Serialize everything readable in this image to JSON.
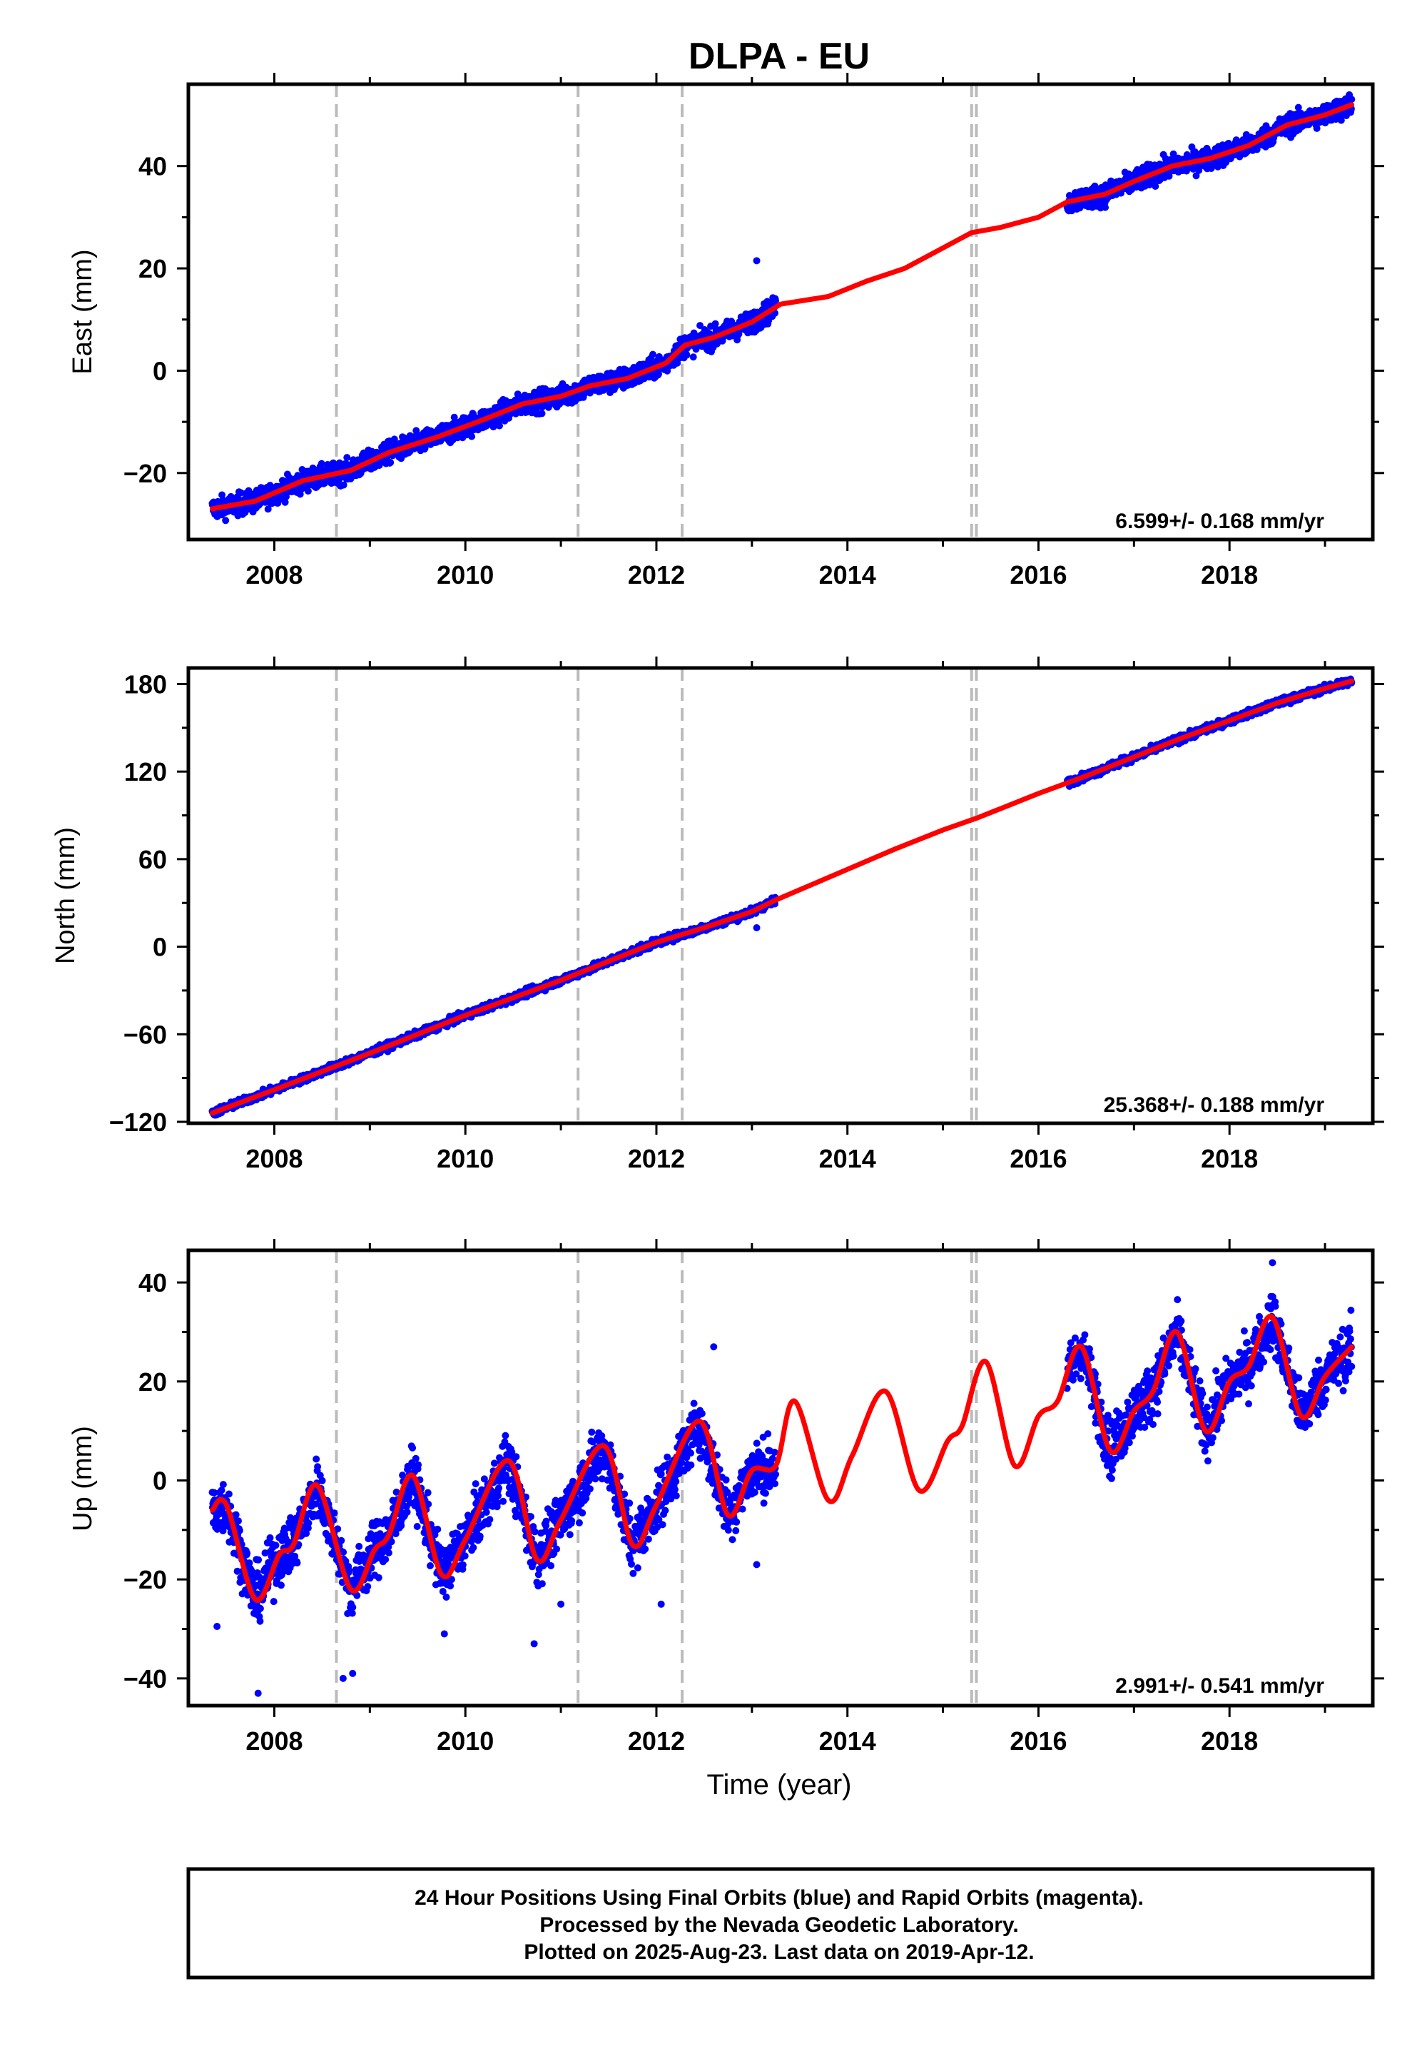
{
  "title": "DLPA - EU",
  "xlabel": "Time (year)",
  "footer": {
    "line1": "24 Hour Positions Using Final Orbits (blue) and Rapid Orbits (magenta).",
    "line2": "Processed by the Nevada Geodetic Laboratory.",
    "line3": "Plotted on 2025-Aug-23. Last data on 2019-Apr-12."
  },
  "colors": {
    "observations": "#0000ff",
    "model": "#ff0000",
    "events": "#bbbbbb",
    "frame": "#000000"
  },
  "chart_data": [
    {
      "type": "scatter",
      "component": "east",
      "ylabel": "East (mm)",
      "xlim": [
        2007.1,
        2019.5
      ],
      "ylim": [
        -33,
        56
      ],
      "x_ticks": [
        2008,
        2010,
        2012,
        2014,
        2016,
        2018
      ],
      "y_ticks": [
        -20,
        0,
        20,
        40
      ],
      "y_tick_labels": [
        "−20",
        "0",
        "20",
        "40"
      ],
      "event_lines": [
        2008.65,
        2011.18,
        2012.27,
        2015.3,
        2015.35
      ],
      "rate_label": "6.599+/- 0.168 mm/yr",
      "model": {
        "x": [
          2007.35,
          2007.8,
          2008.3,
          2008.8,
          2009.2,
          2009.7,
          2010.2,
          2010.6,
          2011.0,
          2011.3,
          2011.7,
          2012.1,
          2012.3,
          2012.6,
          2013.0,
          2013.3,
          2013.8,
          2014.2,
          2014.6,
          2015.0,
          2015.3,
          2015.6,
          2016.0,
          2016.3,
          2016.7,
          2017.0,
          2017.4,
          2017.8,
          2018.2,
          2018.6,
          2019.0,
          2019.28
        ],
        "y": [
          -27,
          -25.5,
          -21.5,
          -19.5,
          -16,
          -13,
          -9.5,
          -6.5,
          -5,
          -3,
          -1.5,
          1.5,
          5,
          6.5,
          9.5,
          13,
          14.5,
          17.5,
          20,
          24,
          27,
          28,
          30,
          33,
          34.5,
          37,
          40,
          41.5,
          44,
          48,
          50,
          52
        ]
      },
      "observations": {
        "segments": [
          [
            2007.35,
            2013.25
          ],
          [
            2016.3,
            2019.28
          ]
        ],
        "outliers": [
          [
            2013.05,
            21.5
          ]
        ]
      }
    },
    {
      "type": "scatter",
      "component": "north",
      "ylabel": "North (mm)",
      "xlim": [
        2007.1,
        2019.5
      ],
      "ylim": [
        -121,
        191
      ],
      "x_ticks": [
        2008,
        2010,
        2012,
        2014,
        2016,
        2018
      ],
      "y_ticks": [
        -120,
        -60,
        0,
        60,
        120,
        180
      ],
      "y_tick_labels": [
        "−120",
        "−60",
        "0",
        "60",
        "120",
        "180"
      ],
      "event_lines": [
        2008.65,
        2011.18,
        2012.27,
        2015.3,
        2015.35
      ],
      "rate_label": "25.368+/- 0.188 mm/yr",
      "model": {
        "x": [
          2007.35,
          2008.0,
          2009.0,
          2010.0,
          2011.0,
          2011.5,
          2012.0,
          2012.5,
          2013.0,
          2013.25,
          2014.0,
          2014.5,
          2015.0,
          2015.35,
          2016.0,
          2016.5,
          2017.0,
          2017.5,
          2018.0,
          2018.5,
          2019.0,
          2019.28
        ],
        "y": [
          -114,
          -98,
          -73,
          -47,
          -23,
          -10,
          3,
          13,
          24,
          32,
          53,
          67,
          80,
          88,
          105,
          117,
          130,
          143,
          155,
          167,
          177,
          182
        ]
      },
      "observations": {
        "segments": [
          [
            2007.35,
            2013.25
          ],
          [
            2016.3,
            2019.28
          ]
        ],
        "outliers": [
          [
            2013.05,
            13
          ]
        ]
      }
    },
    {
      "type": "scatter",
      "component": "up",
      "ylabel": "Up (mm)",
      "xlim": [
        2007.1,
        2019.5
      ],
      "ylim": [
        -45.5,
        46.5
      ],
      "x_ticks": [
        2008,
        2010,
        2012,
        2014,
        2016,
        2018
      ],
      "y_ticks": [
        -40,
        -20,
        0,
        20,
        40
      ],
      "y_tick_labels": [
        "−40",
        "−20",
        "0",
        "20",
        "40"
      ],
      "event_lines": [
        2008.65,
        2011.18,
        2012.27,
        2015.3,
        2015.35
      ],
      "rate_label": "2.991+/- 0.541 mm/yr",
      "model": {
        "x": [
          2007.35,
          2007.5,
          2007.8,
          2008.05,
          2008.2,
          2008.45,
          2008.8,
          2009.05,
          2009.2,
          2009.45,
          2009.75,
          2010.0,
          2010.45,
          2010.75,
          2011.0,
          2011.45,
          2011.75,
          2012.0,
          2012.45,
          2012.75,
          2013.0,
          2013.25,
          2013.45,
          2013.8,
          2014.05,
          2014.4,
          2014.75,
          2015.05,
          2015.2,
          2015.45,
          2015.75,
          2016.0,
          2016.2,
          2016.45,
          2016.75,
          2017.0,
          2017.2,
          2017.45,
          2017.75,
          2018.0,
          2018.2,
          2018.45,
          2018.75,
          2019.0,
          2019.28
        ],
        "y": [
          -6,
          -5,
          -24,
          -15,
          -13,
          -1,
          -22,
          -14,
          -11,
          1,
          -19,
          -12,
          4,
          -16,
          -8,
          7,
          -13,
          -5,
          12,
          -7,
          2,
          3,
          16,
          -4,
          5,
          18,
          -2,
          8,
          11,
          24,
          3,
          13,
          16,
          27,
          6,
          14,
          18,
          30,
          10,
          20,
          23,
          33,
          13,
          21,
          27
        ]
      },
      "observations": {
        "segments": [
          [
            2007.35,
            2013.25
          ],
          [
            2016.3,
            2019.28
          ]
        ],
        "outliers": [
          [
            2007.4,
            -29.5
          ],
          [
            2007.83,
            -43
          ],
          [
            2008.72,
            -40
          ],
          [
            2008.82,
            -39
          ],
          [
            2009.78,
            -31
          ],
          [
            2010.72,
            -33
          ],
          [
            2011.0,
            -25
          ],
          [
            2013.05,
            -17
          ],
          [
            2012.05,
            -25
          ],
          [
            2012.6,
            27
          ],
          [
            2018.45,
            44
          ]
        ]
      }
    }
  ]
}
